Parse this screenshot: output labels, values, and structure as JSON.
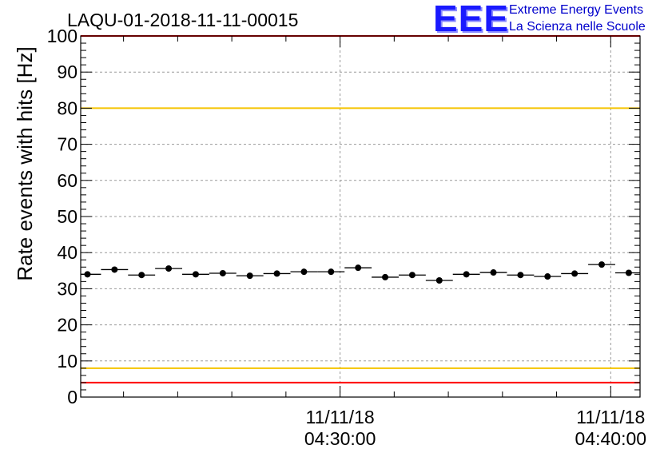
{
  "colors": {
    "limit_red": "#ff0000",
    "limit_yellow": "#f5c400",
    "marker": "#000000",
    "grid": "#999999",
    "logo_blue": "#1a1aff"
  },
  "logo": {
    "mark": "EEE",
    "line1": "Extreme Energy Events",
    "line2": "La Scienza nelle Scuole"
  },
  "chart_data": {
    "type": "scatter",
    "title": "LAQU-01-2018-11-11-00015",
    "ylabel": "Rate events with hits [Hz]",
    "xlabel": "",
    "ylim": [
      0,
      100
    ],
    "yticks": [
      0,
      10,
      20,
      30,
      40,
      50,
      60,
      70,
      80,
      90,
      100
    ],
    "xlim": [
      "2018-11-11 04:20:25",
      "2018-11-11 04:41:05"
    ],
    "xticks": [
      {
        "time": "2018-11-11 04:30:00",
        "date_label": "11/11/18",
        "time_label": "04:30:00"
      },
      {
        "time": "2018-11-11 04:40:00",
        "date_label": "11/11/18",
        "time_label": "04:40:00"
      }
    ],
    "grid": true,
    "legend": "none",
    "limit_lines": [
      {
        "value": 100,
        "color": "red"
      },
      {
        "value": 80,
        "color": "yellow"
      },
      {
        "value": 8,
        "color": "yellow"
      },
      {
        "value": 4,
        "color": "red"
      }
    ],
    "series": [
      {
        "x": [
          "04:20:40",
          "04:21:40",
          "04:22:40",
          "04:23:40",
          "04:24:40",
          "04:25:40",
          "04:26:40",
          "04:27:40",
          "04:28:40",
          "04:29:40",
          "04:30:40",
          "04:31:40",
          "04:32:40",
          "04:33:40",
          "04:34:40",
          "04:35:40",
          "04:36:40",
          "04:37:40",
          "04:38:40",
          "04:39:40",
          "04:40:40"
        ],
        "values": [
          34.0,
          35.3,
          33.8,
          35.6,
          34.0,
          34.3,
          33.6,
          34.2,
          34.7,
          34.7,
          35.8,
          33.2,
          33.8,
          32.3,
          34.0,
          34.5,
          33.8,
          33.4,
          34.2,
          36.7,
          34.4
        ]
      }
    ]
  }
}
